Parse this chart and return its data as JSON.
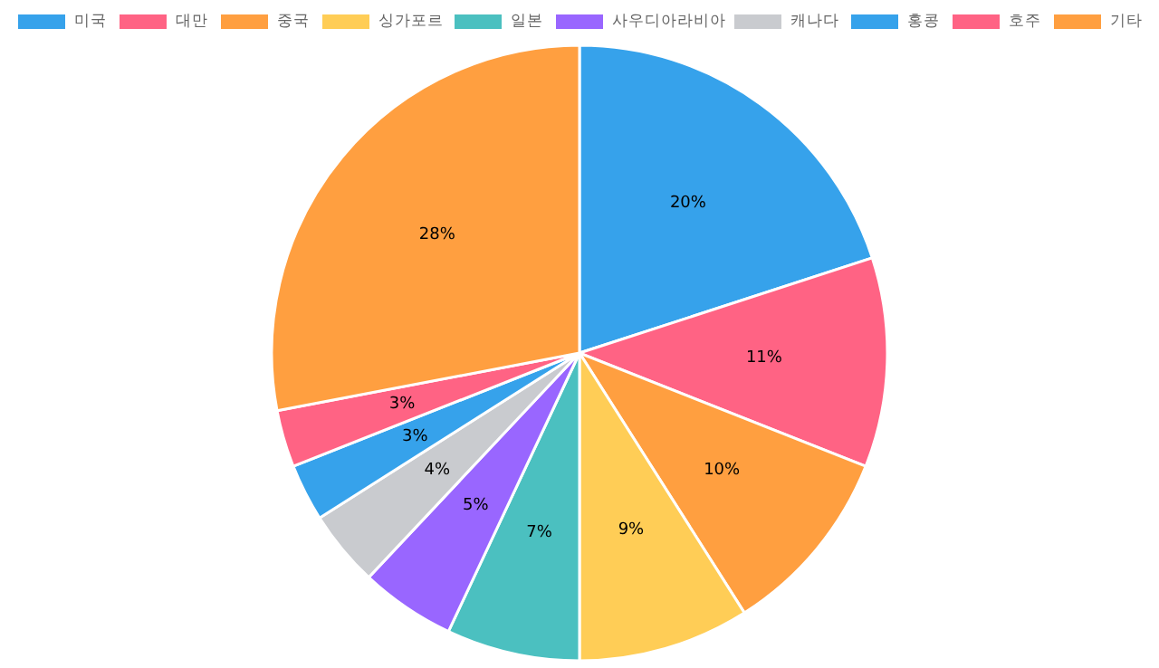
{
  "chart_data": {
    "type": "pie",
    "categories": [
      "미국",
      "대만",
      "중국",
      "싱가포르",
      "일본",
      "사우디아라비아",
      "캐나다",
      "홍콩",
      "호주",
      "기타"
    ],
    "values": [
      20,
      11,
      10,
      9,
      7,
      5,
      4,
      3,
      3,
      28
    ],
    "colors": [
      "#36a2eb",
      "#ff6384",
      "#ff9f40",
      "#ffcd56",
      "#4bc0c0",
      "#9966ff",
      "#c9cbcf",
      "#36a2eb",
      "#ff6384",
      "#ff9f40"
    ],
    "value_labels": [
      "20%",
      "11%",
      "10%",
      "9%",
      "7%",
      "5%",
      "4%",
      "3%",
      "3%",
      "28%"
    ],
    "legend": "top"
  }
}
